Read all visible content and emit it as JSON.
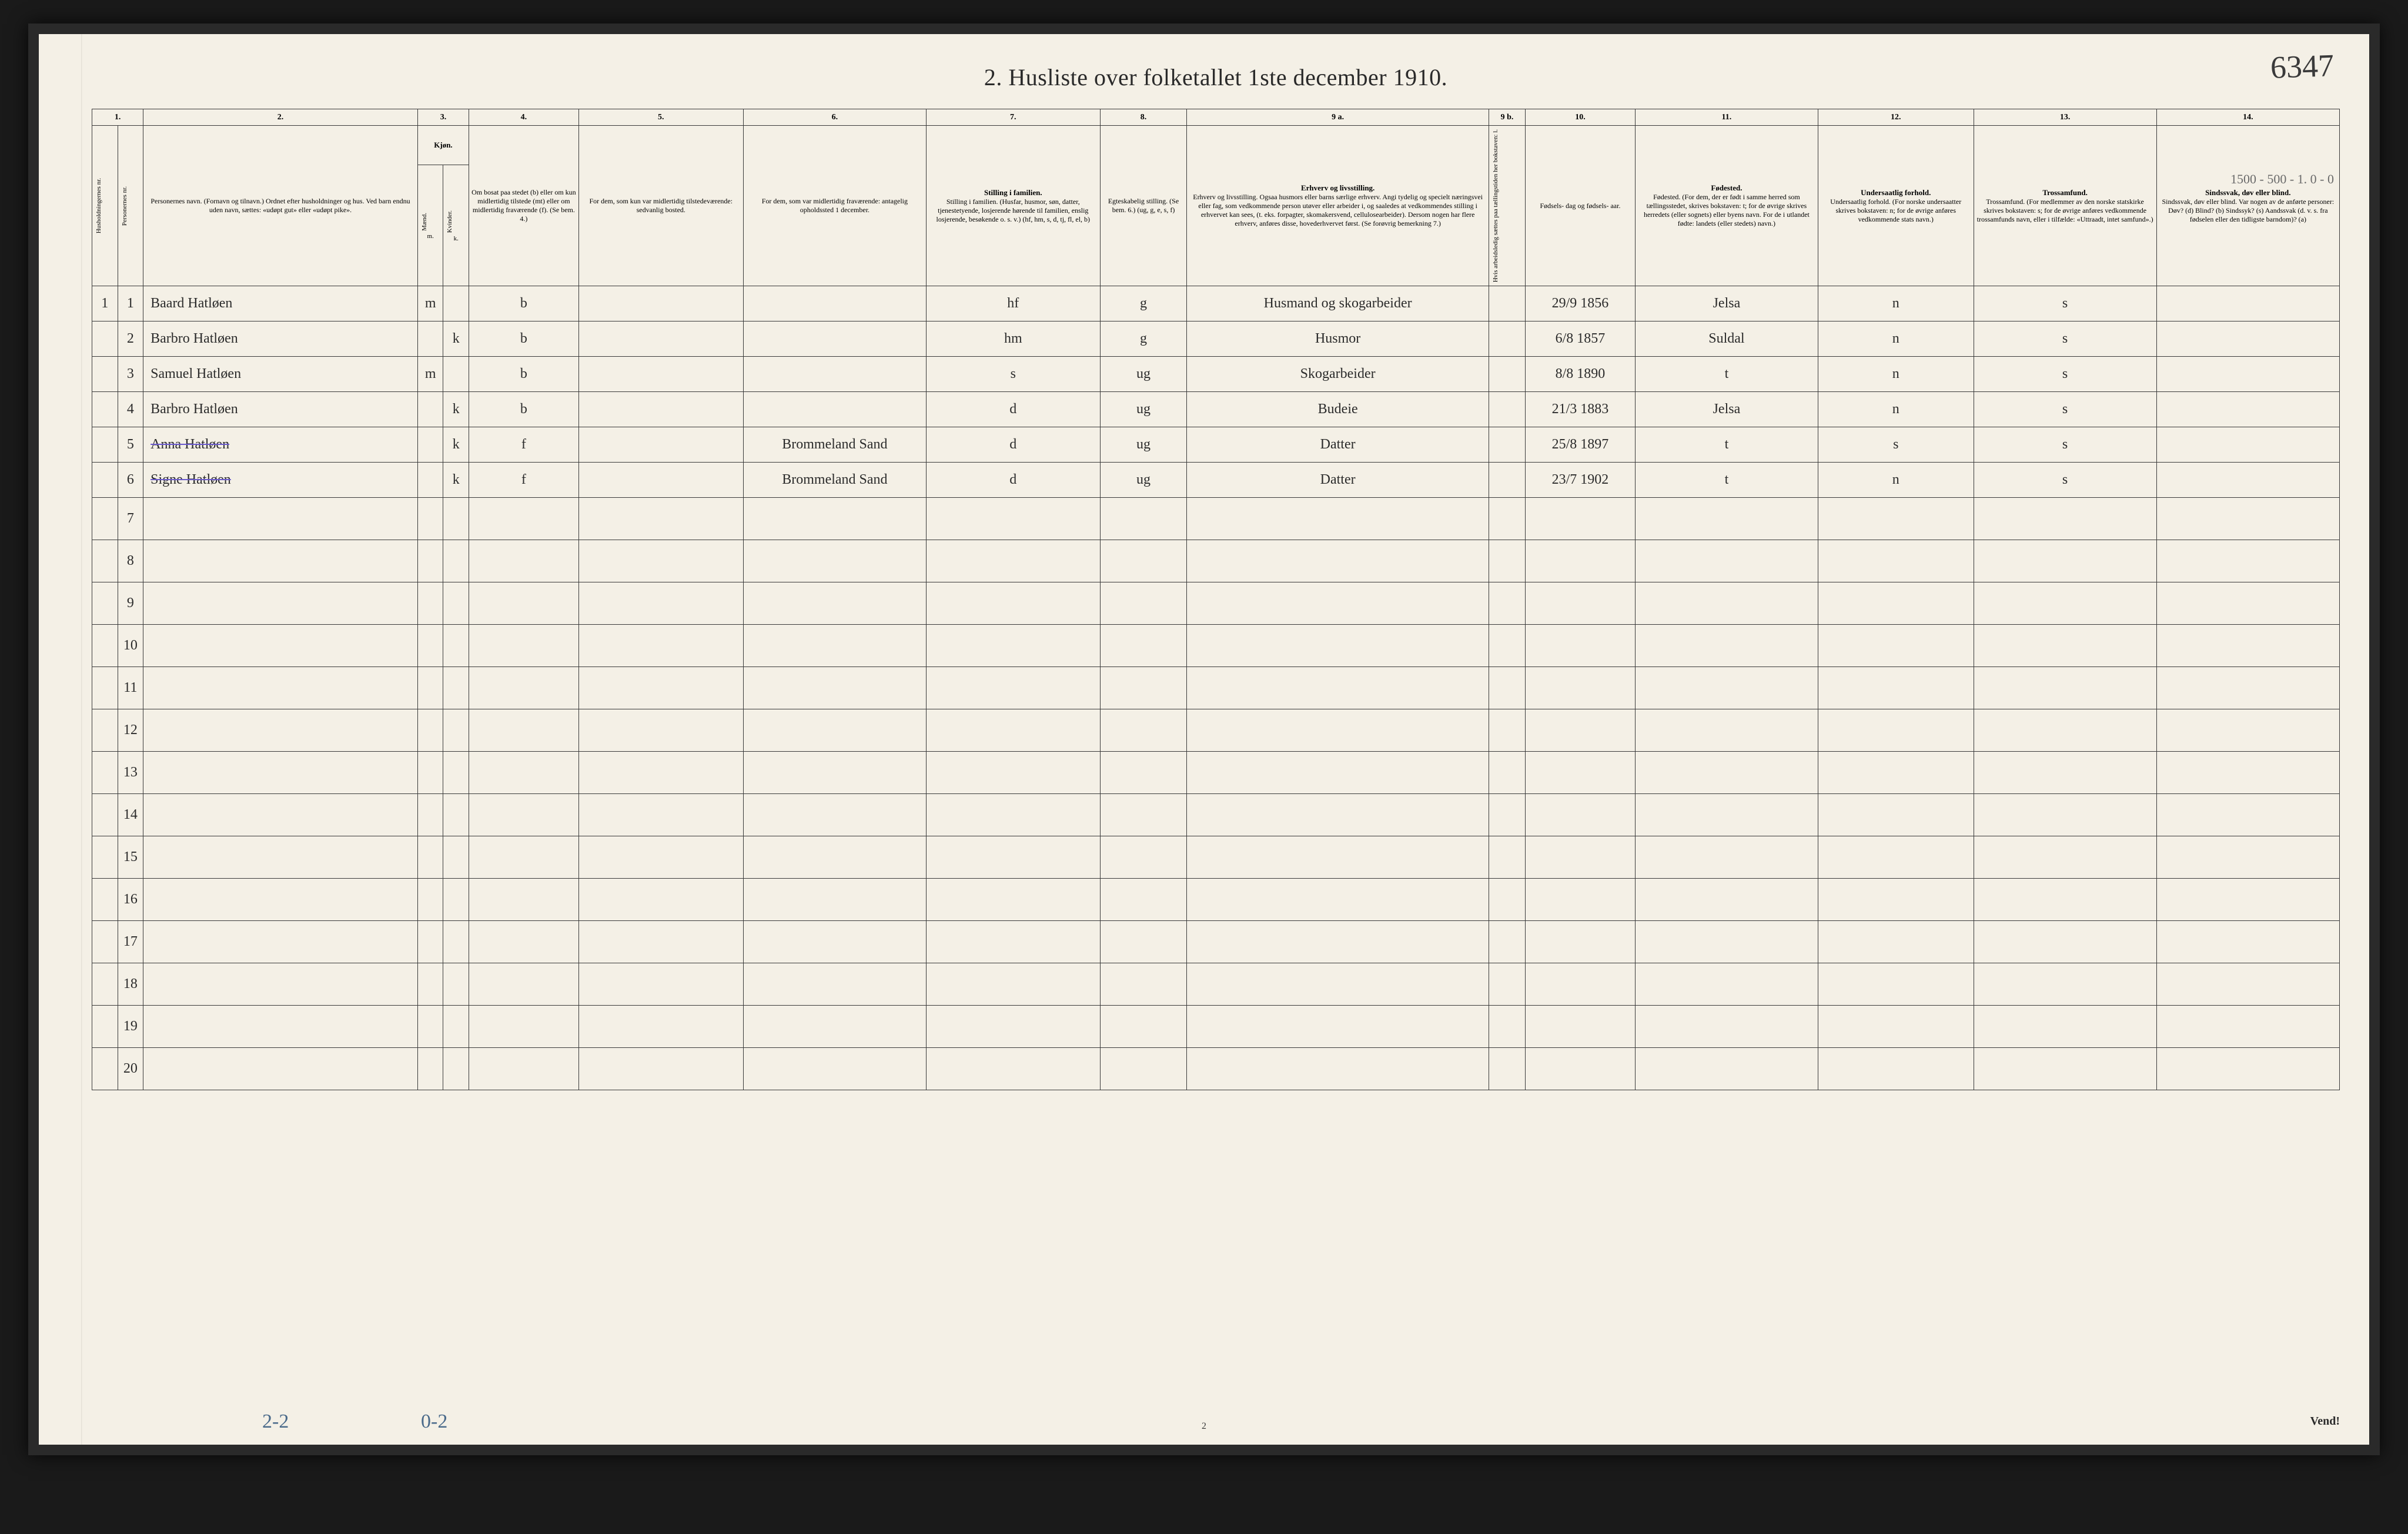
{
  "handwritten_page_no": "6347",
  "title": "2.  Husliste over folketallet 1ste december 1910.",
  "header": {
    "nums": [
      "1.",
      "2.",
      "3.",
      "4.",
      "5.",
      "6.",
      "7.",
      "8.",
      "9 a.",
      "9 b.",
      "10.",
      "11.",
      "12.",
      "13.",
      "14."
    ],
    "col1_v1": "Husholdningernes nr.",
    "col1_v2": "Personernes nr.",
    "col2": "Personernes navn.\n(Fornavn og tilnavn.)\nOrdnet efter husholdninger og hus.\nVed barn endnu uden navn, sættes: «udøpt gut» eller «udøpt pike».",
    "col3_top": "Kjøn.",
    "col3_m": "Mænd.",
    "col3_k": "Kvinder.",
    "col4": "Om bosat paa stedet (b) eller om kun midlertidig tilstede (mt) eller om midlertidig fraværende (f).\n(Se bem. 4.)",
    "col5": "For dem, som kun var midlertidig tilstedeværende:\nsedvanlig bosted.",
    "col6": "For dem, som var midlertidig fraværende:\nantagelig opholdssted 1 december.",
    "col7": "Stilling i familien.\n(Husfar, husmor, søn, datter, tjenestetyende, losjerende hørende til familien, enslig losjerende, besøkende o. s. v.)\n(hf, hm, s, d, tj, fl, el, b)",
    "col8": "Egteskabelig stilling.\n(Se bem. 6.)\n(ug, g, e, s, f)",
    "col9a": "Erhverv og livsstilling.\nOgsaa husmors eller barns særlige erhverv. Angi tydelig og specielt næringsvei eller fag, som vedkommende person utøver eller arbeider i, og saaledes at vedkommendes stilling i erhvervet kan sees, (t. eks. forpagter, skomakersvend, cellulosearbeider). Dersom nogen har flere erhverv, anføres disse, hovederhvervet først.\n(Se forøvrig bemerkning 7.)",
    "col9b": "Hvis arbeidsledig sættes paa tællingstiden her bokstaven: l.",
    "col10": "Fødsels-\ndag\nog\nfødsels-\naar.",
    "col11": "Fødested.\n(For dem, der er født i samme herred som tællingsstedet, skrives bokstaven: t; for de øvrige skrives herredets (eller sognets) eller byens navn. For de i utlandet fødte: landets (eller stedets) navn.)",
    "col12": "Undersaatlig forhold.\n(For norske undersaatter skrives bokstaven: n; for de øvrige anføres vedkommende stats navn.)",
    "col13": "Trossamfund.\n(For medlemmer av den norske statskirke skrives bokstaven: s; for de øvrige anføres vedkommende trossamfunds navn, eller i tilfælde: «Uttraadt, intet samfund».)",
    "col14": "Sindssvak, døv eller blind.\nVar nogen av de anførte personer:\nDøv?   (d)\nBlind?   (b)\nSindssyk?   (s)\nAandssvak (d. v. s. fra fødselen eller den tidligste barndom)?   (a)"
  },
  "rows": [
    {
      "h": "1",
      "p": "1",
      "name": "Baard Hatløen",
      "m": "m",
      "k": "",
      "b": "b",
      "c5": "",
      "c6": "",
      "fam": "hf",
      "eg": "g",
      "erhv": "Husmand og skogarbeider",
      "l": "",
      "fd": "29/9 1856",
      "fs": "Jelsa",
      "u": "n",
      "t": "s",
      "s": ""
    },
    {
      "h": "",
      "p": "2",
      "name": "Barbro Hatløen",
      "m": "",
      "k": "k",
      "b": "b",
      "c5": "",
      "c6": "",
      "fam": "hm",
      "eg": "g",
      "erhv": "Husmor",
      "l": "",
      "fd": "6/8 1857",
      "fs": "Suldal",
      "u": "n",
      "t": "s",
      "s": ""
    },
    {
      "h": "",
      "p": "3",
      "name": "Samuel Hatløen",
      "m": "m",
      "k": "",
      "b": "b",
      "c5": "",
      "c6": "",
      "fam": "s",
      "eg": "ug",
      "erhv": "Skogarbeider",
      "l": "",
      "fd": "8/8 1890",
      "fs": "t",
      "u": "n",
      "t2": "s",
      "s": ""
    },
    {
      "h": "",
      "p": "4",
      "name": "Barbro Hatløen",
      "m": "",
      "k": "k",
      "b": "b",
      "c5": "",
      "c6": "",
      "fam": "d",
      "eg": "ug",
      "erhv": "Budeie",
      "l": "",
      "fd": "21/3 1883",
      "fs": "Jelsa",
      "u": "n",
      "t": "s",
      "s": ""
    },
    {
      "h": "",
      "p": "5",
      "name": "Anna Hatløen",
      "m": "",
      "k": "k",
      "b": "f",
      "c5": "",
      "c6": "Brommeland Sand",
      "fam": "d",
      "eg": "ug",
      "erhv": "Datter",
      "l": "",
      "fd": "25/8 1897",
      "fs": "t",
      "u": "s",
      "t2": "s",
      "s": "",
      "struck": true
    },
    {
      "h": "",
      "p": "6",
      "name": "Signe Hatløen",
      "m": "",
      "k": "k",
      "b": "f",
      "c5": "",
      "c6": "Brommeland Sand",
      "fam": "d",
      "eg": "ug",
      "erhv": "Datter",
      "l": "",
      "fd": "23/7 1902",
      "fs": "t",
      "u": "n",
      "t": "s",
      "s": "",
      "struck": true
    }
  ],
  "empty_rows": [
    7,
    8,
    9,
    10,
    11,
    12,
    13,
    14,
    15,
    16,
    17,
    18,
    19,
    20
  ],
  "margin_note": "1500 - 500 - 1.\n0 - 0",
  "foot_a": "2-2",
  "foot_b": "0-2",
  "foot_page": "2",
  "vend": "Vend!"
}
